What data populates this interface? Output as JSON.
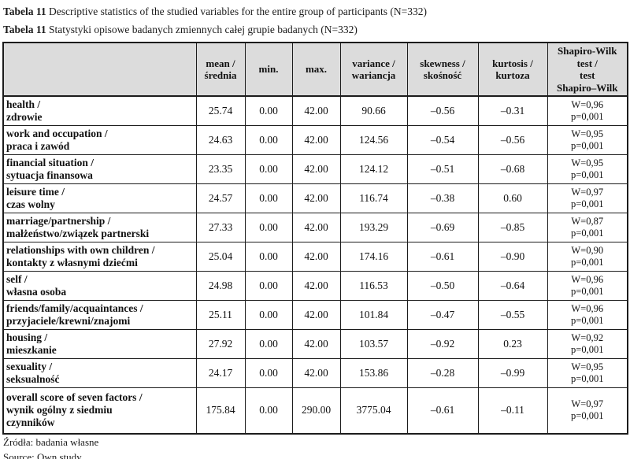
{
  "titles": {
    "en": {
      "label": "Tabela 11",
      "text": " Descriptive statistics of the studied variables for the entire group of participants (N=332)"
    },
    "pl": {
      "label": "Tabela 11",
      "text": " Statystyki opisowe badanych zmiennych całej grupie badanych (N=332)"
    }
  },
  "table": {
    "headers": [
      "",
      "mean /\nśrednia",
      "min.",
      "max.",
      "variance /\nwariancja",
      "skewness /\nskośność",
      "kurtosis /\nkurtoza",
      "Shapiro-Wilk\ntest /\ntest\nShapiro–Wilk"
    ],
    "rows": [
      {
        "label": "health /\nzdrowie",
        "mean": "25.74",
        "min": "0.00",
        "max": "42.00",
        "variance": "90.66",
        "skewness": "–0.56",
        "kurtosis": "–0.31",
        "shapiro": "W=0,96\np=0,001"
      },
      {
        "label": "work and occupation /\npraca i zawód",
        "mean": "24.63",
        "min": "0.00",
        "max": "42.00",
        "variance": "124.56",
        "skewness": "–0.54",
        "kurtosis": "–0.56",
        "shapiro": "W=0,95\np=0,001"
      },
      {
        "label": "financial situation /\nsytuacja finansowa",
        "mean": "23.35",
        "min": "0.00",
        "max": "42.00",
        "variance": "124.12",
        "skewness": "–0.51",
        "kurtosis": "–0.68",
        "shapiro": "W=0,95\np=0,001"
      },
      {
        "label": "leisure time /\nczas wolny",
        "mean": "24.57",
        "min": "0.00",
        "max": "42.00",
        "variance": "116.74",
        "skewness": "–0.38",
        "kurtosis": "0.60",
        "shapiro": "W=0,97\np=0,001"
      },
      {
        "label": "marriage/partnership /\nmałżeństwo/związek partnerski",
        "mean": "27.33",
        "min": "0.00",
        "max": "42.00",
        "variance": "193.29",
        "skewness": "–0.69",
        "kurtosis": "–0.85",
        "shapiro": "W=0,87\np=0,001"
      },
      {
        "label": "relationships with own children /\nkontakty z własnymi dziećmi",
        "mean": "25.04",
        "min": "0.00",
        "max": "42.00",
        "variance": "174.16",
        "skewness": "–0.61",
        "kurtosis": "–0.90",
        "shapiro": "W=0,90\np=0,001"
      },
      {
        "label": "self /\nwłasna osoba",
        "mean": "24.98",
        "min": "0.00",
        "max": "42.00",
        "variance": "116.53",
        "skewness": "–0.50",
        "kurtosis": "–0.64",
        "shapiro": "W=0,96\np=0,001"
      },
      {
        "label": "friends/family/acquaintances /\nprzyjaciele/krewni/znajomi",
        "mean": "25.11",
        "min": "0.00",
        "max": "42.00",
        "variance": "101.84",
        "skewness": "–0.47",
        "kurtosis": "–0.55",
        "shapiro": "W=0,96\np=0,001"
      },
      {
        "label": "housing /\nmieszkanie",
        "mean": "27.92",
        "min": "0.00",
        "max": "42.00",
        "variance": "103.57",
        "skewness": "–0.92",
        "kurtosis": "0.23",
        "shapiro": "W=0,92\np=0,001"
      },
      {
        "label": "sexuality /\nseksualność",
        "mean": "24.17",
        "min": "0.00",
        "max": "42.00",
        "variance": "153.86",
        "skewness": "–0.28",
        "kurtosis": "–0.99",
        "shapiro": "W=0,95\np=0,001"
      },
      {
        "label": "overall score of seven factors /\nwynik ogólny z siedmiu\nczynników",
        "mean": "175.84",
        "min": "0.00",
        "max": "290.00",
        "variance": "3775.04",
        "skewness": "–0.61",
        "kurtosis": "–0.11",
        "shapiro": "W=0,97\np=0,001"
      }
    ]
  },
  "footer": {
    "line_pl": "Źródła: badania własne",
    "line_en": "Source: Own study"
  },
  "colors": {
    "header_bg": "#dcdcdc",
    "border": "#1c1c1c",
    "text": "#111111"
  }
}
